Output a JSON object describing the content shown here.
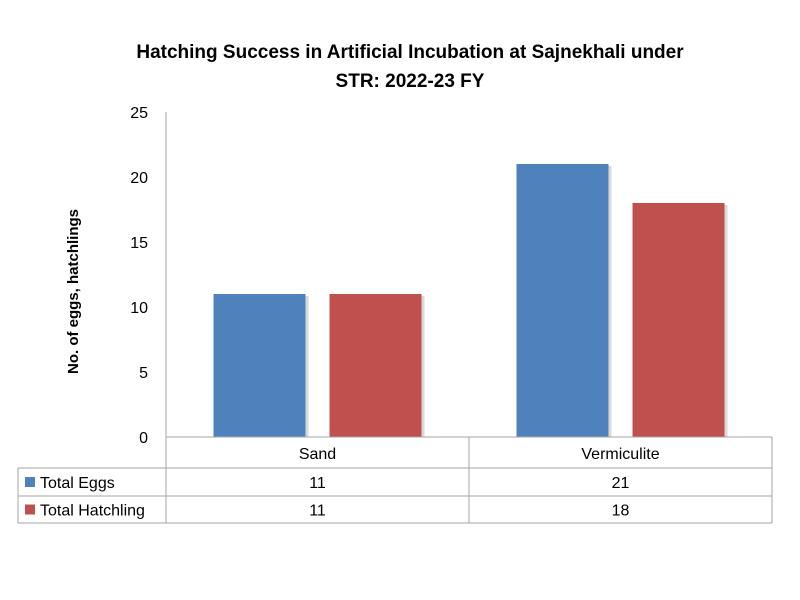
{
  "chart_data": {
    "type": "bar",
    "title": "Hatching Success in Artificial Incubation at Sajnekhali under STR: 2022-23 FY",
    "title_lines": [
      "Hatching Success in Artificial Incubation at Sajnekhali under",
      "STR: 2022-23 FY"
    ],
    "ylabel": "No. of eggs, hatchlings",
    "xlabel": "",
    "categories": [
      "Sand",
      "Vermiculite"
    ],
    "series": [
      {
        "name": "Total Eggs",
        "values": [
          11,
          21
        ],
        "color": "#4F81BD"
      },
      {
        "name": "Total Hatchling",
        "values": [
          11,
          18
        ],
        "color": "#C0504D"
      }
    ],
    "ylim": [
      0,
      25
    ],
    "yticks": [
      0,
      5,
      10,
      15,
      20,
      25
    ],
    "grid": false,
    "legend": "data-table"
  }
}
